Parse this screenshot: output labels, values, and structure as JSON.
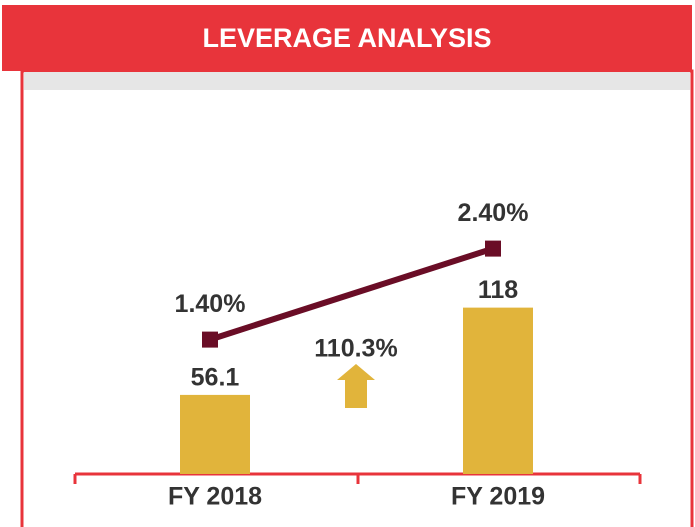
{
  "chart_data": {
    "type": "bar",
    "title": "LEVERAGE ANALYSIS",
    "categories": [
      "FY 2018",
      "FY 2019"
    ],
    "series": [
      {
        "type": "bar",
        "color": "#e1b43b",
        "values": [
          56.1,
          118
        ]
      },
      {
        "type": "line",
        "color": "#6a0d26",
        "values": [
          1.4,
          2.4
        ],
        "value_labels": [
          "1.40%",
          "2.40%"
        ]
      }
    ],
    "annotations": [
      "110.3%"
    ],
    "annotation_color": "#e1b43b",
    "frame_color": "#e8343b"
  }
}
